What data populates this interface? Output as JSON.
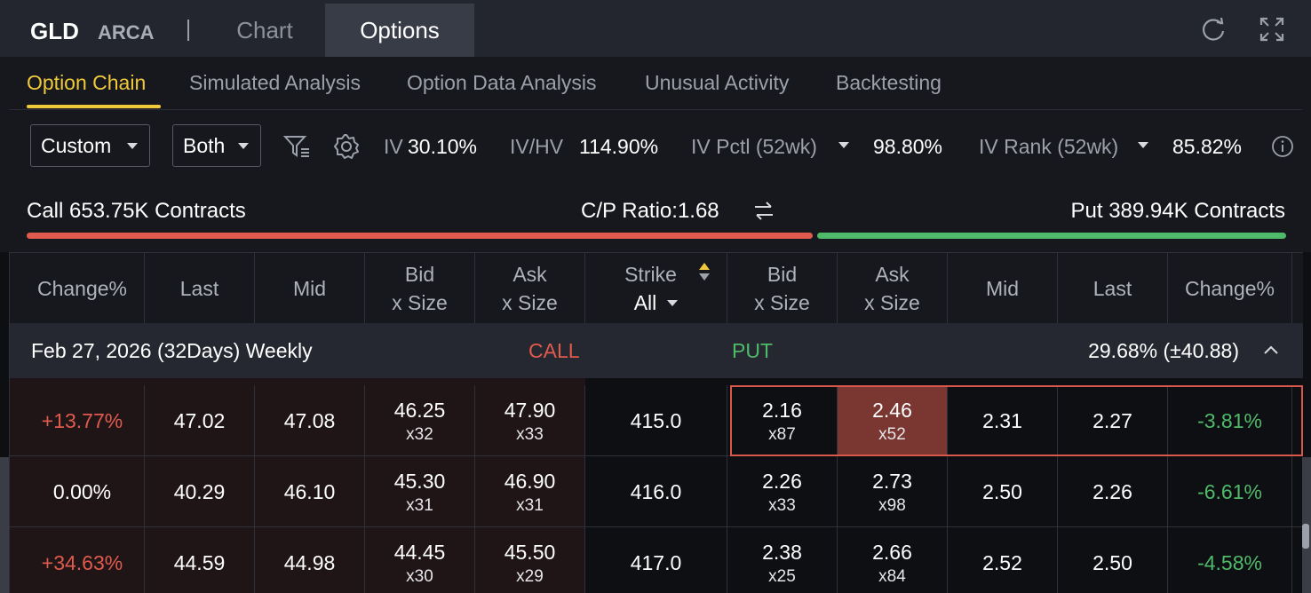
{
  "header": {
    "symbol": "GLD",
    "exchange": "ARCA",
    "tabs": [
      {
        "label": "Chart"
      },
      {
        "label": "Options"
      }
    ],
    "active_tab": "Options",
    "icons": [
      "refresh-icon",
      "fullscreen-icon"
    ]
  },
  "subtabs": {
    "items": [
      {
        "label": "Option Chain"
      },
      {
        "label": "Simulated Analysis"
      },
      {
        "label": "Option Data Analysis"
      },
      {
        "label": "Unusual Activity"
      },
      {
        "label": "Backtesting"
      }
    ],
    "active": "Option Chain"
  },
  "filters": {
    "range_select": "Custom",
    "side_select": "Both",
    "iv_label": "IV",
    "iv_value": "30.10%",
    "ivhv_label": "IV/HV",
    "ivhv_value": "114.90%",
    "ivpctl_label": "IV Pctl (52wk)",
    "ivpctl_value": "98.80%",
    "ivrank_label": "IV Rank (52wk)",
    "ivrank_value": "85.82%"
  },
  "contracts": {
    "call": "Call 653.75K Contracts",
    "ratio": "C/P Ratio:1.68",
    "put": "Put 389.94K Contracts",
    "call_share": 0.626
  },
  "table": {
    "columns": {
      "call_change": "Change%",
      "call_last": "Last",
      "call_mid": "Mid",
      "bid_1": "Bid",
      "bid_2": "x Size",
      "ask_1": "Ask",
      "ask_2": "x Size",
      "strike_1": "Strike",
      "strike_2": "All",
      "put_mid": "Mid",
      "put_last": "Last",
      "put_change": "Change%"
    },
    "expiry": {
      "date": "Feb 27, 2026 (32Days) Weekly",
      "call_label": "CALL",
      "put_label": "PUT",
      "iv": "29.68%  (±40.88)"
    },
    "rows": [
      {
        "call_change": "+13.77%",
        "call_last": "47.02",
        "call_mid": "47.08",
        "call_bid": "46.25",
        "call_bid_size": "x32",
        "call_ask": "47.90",
        "call_ask_size": "x33",
        "strike": "415.0",
        "put_bid": "2.16",
        "put_bid_size": "x87",
        "put_ask": "2.46",
        "put_ask_size": "x52",
        "put_mid": "2.31",
        "put_last": "2.27",
        "put_change": "-3.81%"
      },
      {
        "call_change": "0.00%",
        "call_last": "40.29",
        "call_mid": "46.10",
        "call_bid": "45.30",
        "call_bid_size": "x31",
        "call_ask": "46.90",
        "call_ask_size": "x31",
        "strike": "416.0",
        "put_bid": "2.26",
        "put_bid_size": "x33",
        "put_ask": "2.73",
        "put_ask_size": "x98",
        "put_mid": "2.50",
        "put_last": "2.26",
        "put_change": "-6.61%"
      },
      {
        "call_change": "+34.63%",
        "call_last": "44.59",
        "call_mid": "44.98",
        "call_bid": "44.45",
        "call_bid_size": "x30",
        "call_ask": "45.50",
        "call_ask_size": "x29",
        "strike": "417.0",
        "put_bid": "2.38",
        "put_bid_size": "x25",
        "put_ask": "2.66",
        "put_ask_size": "x84",
        "put_mid": "2.52",
        "put_last": "2.50",
        "put_change": "-4.58%"
      }
    ]
  },
  "colors": {
    "accent": "#f0c93a",
    "call_red": "#e05a4d",
    "put_green": "#4fba6a",
    "background": "#0e0f13",
    "panel": "#16181d"
  }
}
